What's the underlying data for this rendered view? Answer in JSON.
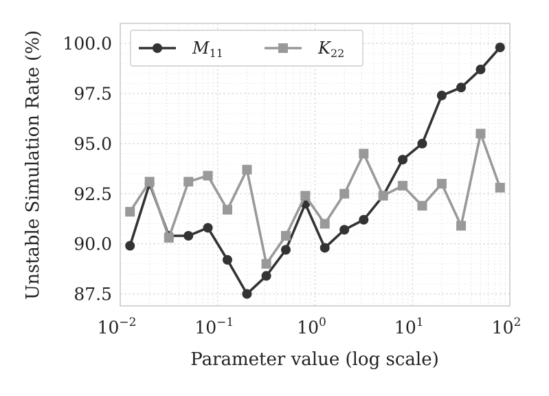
{
  "chart_data": {
    "type": "line",
    "title": "",
    "xlabel": "Parameter value (log scale)",
    "ylabel": "Unstable Simulation Rate (%)",
    "xscale": "log",
    "xlim": [
      0.01,
      100
    ],
    "ylim": [
      86.9,
      101.0
    ],
    "grid": true,
    "legend_position": "top-left",
    "x_ticks": [
      {
        "value": 0.01,
        "base": "10",
        "exp": "−2"
      },
      {
        "value": 0.1,
        "base": "10",
        "exp": "−1"
      },
      {
        "value": 1,
        "base": "10",
        "exp": "0"
      },
      {
        "value": 10,
        "base": "10",
        "exp": "1"
      },
      {
        "value": 100,
        "base": "10",
        "exp": "2"
      }
    ],
    "y_ticks": [
      "87.5",
      "90.0",
      "92.5",
      "95.0",
      "97.5",
      "100.0"
    ],
    "x": [
      0.0126,
      0.02,
      0.0316,
      0.0501,
      0.0794,
      0.126,
      0.2,
      0.316,
      0.501,
      0.794,
      1.26,
      2.0,
      3.16,
      5.01,
      7.94,
      12.6,
      20.0,
      31.6,
      50.1,
      79.4
    ],
    "series": [
      {
        "name": "M",
        "subscript": "11",
        "marker": "circle",
        "color": "#333333",
        "values": [
          89.9,
          93.0,
          90.4,
          90.4,
          90.8,
          89.2,
          87.5,
          88.4,
          89.7,
          92.0,
          89.8,
          90.7,
          91.2,
          92.4,
          94.2,
          95.0,
          97.4,
          97.8,
          98.7,
          99.8
        ]
      },
      {
        "name": "K",
        "subscript": "22",
        "marker": "square",
        "color": "#999999",
        "values": [
          91.6,
          93.1,
          90.3,
          93.1,
          93.4,
          91.7,
          93.7,
          89.0,
          90.4,
          92.4,
          91.0,
          92.5,
          94.5,
          92.4,
          92.9,
          91.9,
          93.0,
          90.9,
          95.5,
          92.8
        ]
      }
    ]
  }
}
